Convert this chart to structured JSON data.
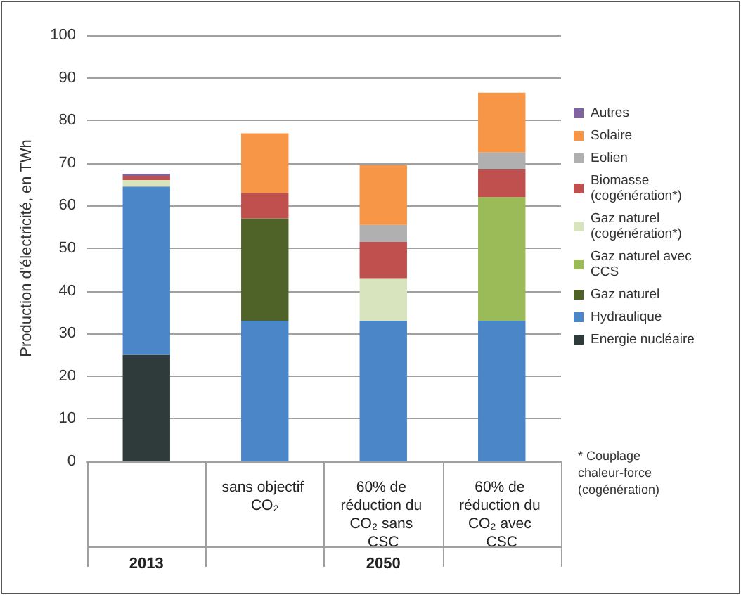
{
  "chart_data": {
    "type": "bar",
    "stacked": true,
    "ylabel": "Production d'électricité, en TWh",
    "categories": [
      null,
      "sans objectif CO₂",
      "60% de réduction du CO₂ sans CSC",
      "60% de réduction du CO₂ avec CSC"
    ],
    "series": [
      {
        "name": "Energie nucléaire",
        "color": "#2f3b3b",
        "values": [
          25,
          0,
          0,
          0
        ]
      },
      {
        "name": "Hydraulique",
        "color": "#4a86c8",
        "values": [
          39.5,
          33,
          33,
          33
        ]
      },
      {
        "name": "Gaz naturel",
        "color": "#4f6228",
        "values": [
          0,
          24,
          0,
          0
        ]
      },
      {
        "name": "Gaz naturel avec CCS",
        "color": "#9bbb59",
        "values": [
          0,
          0,
          0,
          29
        ]
      },
      {
        "name": "Gaz naturel (cogénération*)",
        "color": "#d7e4bd",
        "values": [
          1.5,
          0,
          10,
          0
        ]
      },
      {
        "name": "Biomasse (cogénération*)",
        "color": "#c0504d",
        "values": [
          1,
          6,
          8.5,
          6.5
        ]
      },
      {
        "name": "Eolien",
        "color": "#b0b0b0",
        "values": [
          null,
          0,
          4,
          4
        ]
      },
      {
        "name": "Solaire",
        "color": "#f79646",
        "values": [
          0,
          14,
          14,
          14
        ]
      },
      {
        "name": "Autres",
        "color": "#8064a2",
        "values": [
          0.5,
          0,
          0,
          0
        ]
      }
    ],
    "ylim": [
      0,
      100
    ],
    "yticks": [
      0,
      10,
      20,
      30,
      40,
      50,
      60,
      70,
      80,
      90,
      100
    ],
    "grid": "y",
    "legend": "right",
    "annotations": [
      "2013",
      "2050",
      "* Couplage chaleur-force (cogénération)"
    ]
  }
}
